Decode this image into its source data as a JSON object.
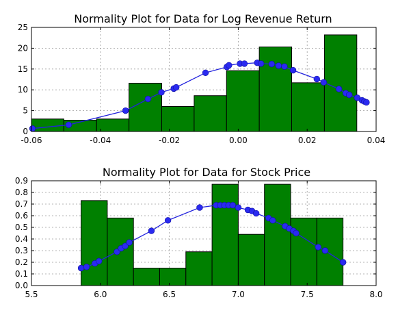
{
  "chart_data": [
    {
      "type": "bar",
      "title": "Normality Plot for Data for Log Revenue Return",
      "xlabel": "",
      "ylabel": "",
      "xlim": [
        -0.06,
        0.04
      ],
      "ylim": [
        0,
        25
      ],
      "xticks": [
        "-0.06",
        "-0.04",
        "-0.02",
        "0.00",
        "0.02",
        "0.04"
      ],
      "yticks": [
        "0",
        "5",
        "10",
        "15",
        "20",
        "25"
      ],
      "xtick_values": [
        -0.06,
        -0.04,
        -0.02,
        0.0,
        0.02,
        0.04
      ],
      "ytick_values": [
        0,
        5,
        10,
        15,
        20,
        25
      ],
      "grid": true,
      "histogram": {
        "bin_edges": [
          -0.06,
          -0.0506,
          -0.0411,
          -0.0317,
          -0.0222,
          -0.0128,
          -0.0034,
          0.0061,
          0.0155,
          0.025,
          0.0344
        ],
        "heights": [
          3.0,
          2.7,
          3.0,
          11.6,
          6.0,
          8.6,
          14.6,
          20.3,
          11.7,
          23.2
        ],
        "color": "#008000"
      },
      "fit_curve": {
        "color": "#1f1fff",
        "x": [
          -0.0597,
          -0.0492,
          -0.0327,
          -0.0262,
          -0.0223,
          -0.0187,
          -0.018,
          -0.0095,
          -0.0033,
          -0.0027,
          0.0005,
          0.0018,
          0.0055,
          0.0066,
          0.0097,
          0.0117,
          0.0134,
          0.0159,
          0.0228,
          0.0248,
          0.0292,
          0.0312,
          0.0322,
          0.0345,
          0.0359,
          0.0366,
          0.0372
        ],
        "y": [
          0.7,
          1.6,
          5.0,
          7.8,
          9.4,
          10.3,
          10.6,
          14.1,
          15.5,
          15.9,
          16.3,
          16.3,
          16.5,
          16.3,
          16.2,
          15.8,
          15.6,
          14.7,
          12.6,
          11.8,
          10.2,
          9.2,
          8.8,
          8.1,
          7.5,
          7.2,
          7.0
        ]
      }
    },
    {
      "type": "bar",
      "title": "Normality Plot for Data for Stock Price",
      "xlabel": "",
      "ylabel": "",
      "xlim": [
        5.5,
        8.0
      ],
      "ylim": [
        0,
        0.9
      ],
      "xticks": [
        "5.5",
        "6.0",
        "6.5",
        "7.0",
        "7.5",
        "8.0"
      ],
      "yticks": [
        "0.0",
        "0.1",
        "0.2",
        "0.3",
        "0.4",
        "0.5",
        "0.6",
        "0.7",
        "0.8",
        "0.9"
      ],
      "xtick_values": [
        5.5,
        6.0,
        6.5,
        7.0,
        7.5,
        8.0
      ],
      "ytick_values": [
        0,
        0.1,
        0.2,
        0.3,
        0.4,
        0.5,
        0.6,
        0.7,
        0.8,
        0.9
      ],
      "grid": true,
      "histogram": {
        "bin_edges": [
          5.86,
          6.05,
          6.24,
          6.43,
          6.62,
          6.81,
          7.0,
          7.19,
          7.38,
          7.57,
          7.76
        ],
        "heights": [
          0.73,
          0.58,
          0.15,
          0.15,
          0.29,
          0.87,
          0.44,
          0.87,
          0.58,
          0.58
        ],
        "color": "#008000"
      },
      "fit_curve": {
        "color": "#1f1fff",
        "x": [
          5.86,
          5.9,
          5.96,
          5.99,
          6.12,
          6.15,
          6.18,
          6.21,
          6.37,
          6.49,
          6.72,
          6.84,
          6.87,
          6.9,
          6.93,
          6.96,
          7.0,
          7.07,
          7.1,
          7.13,
          7.22,
          7.25,
          7.34,
          7.37,
          7.4,
          7.42,
          7.58,
          7.63,
          7.76
        ],
        "y": [
          0.15,
          0.16,
          0.19,
          0.21,
          0.29,
          0.32,
          0.34,
          0.37,
          0.47,
          0.56,
          0.67,
          0.69,
          0.69,
          0.69,
          0.69,
          0.69,
          0.67,
          0.65,
          0.64,
          0.62,
          0.58,
          0.56,
          0.51,
          0.49,
          0.47,
          0.45,
          0.33,
          0.3,
          0.2
        ]
      }
    }
  ]
}
